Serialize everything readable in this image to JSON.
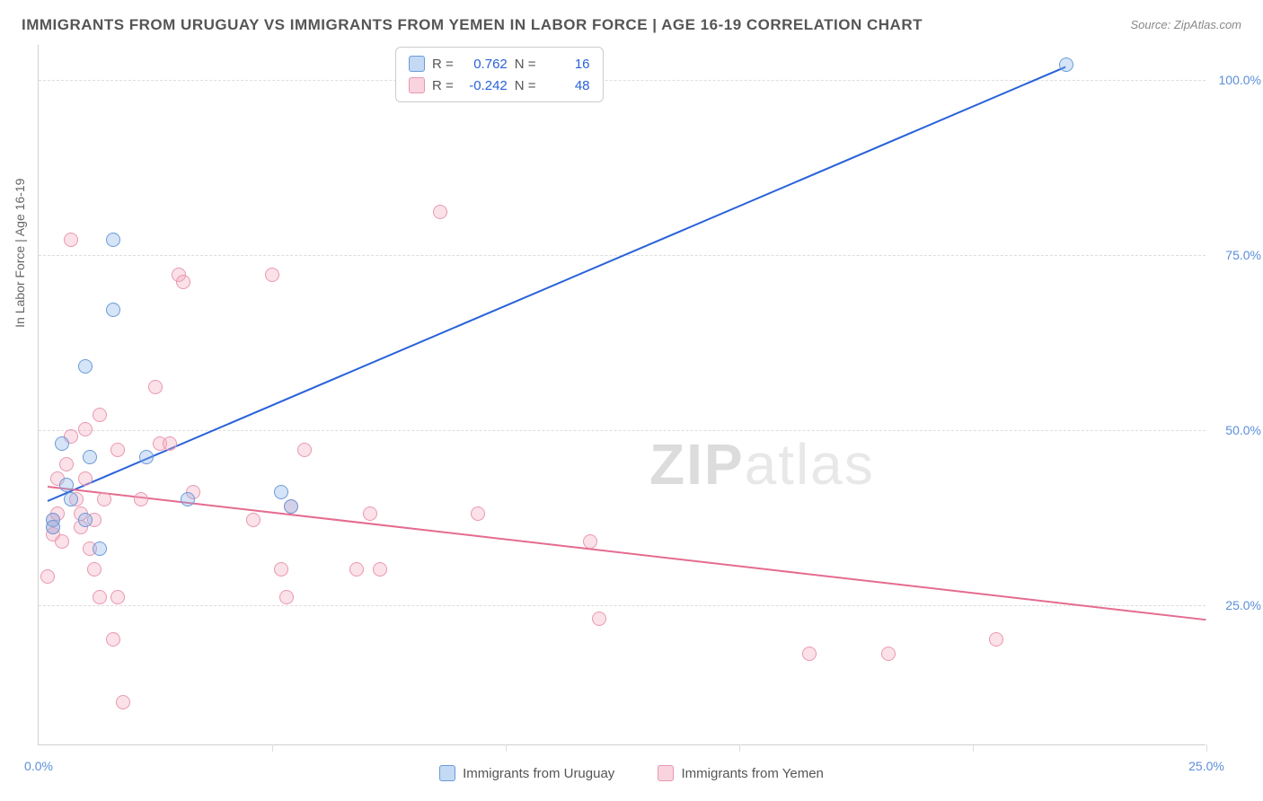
{
  "title": "IMMIGRANTS FROM URUGUAY VS IMMIGRANTS FROM YEMEN IN LABOR FORCE | AGE 16-19 CORRELATION CHART",
  "source": "Source: ZipAtlas.com",
  "watermark_a": "ZIP",
  "watermark_b": "atlas",
  "y_axis_label": "In Labor Force | Age 16-19",
  "chart": {
    "type": "scatter",
    "xlim": [
      0,
      25
    ],
    "ylim": [
      5,
      105
    ],
    "xticks": [
      0,
      25
    ],
    "yticks": [
      25,
      50,
      75,
      100
    ],
    "xtick_labels": [
      "0.0%",
      "25.0%"
    ],
    "ytick_labels": [
      "25.0%",
      "50.0%",
      "75.0%",
      "100.0%"
    ],
    "grid_color": "#dddddd",
    "background_color": "#ffffff",
    "series": [
      {
        "name": "Immigrants from Uruguay",
        "color": "#6a9bd8",
        "fill": "rgba(137,179,232,0.35)",
        "class": "point-blue",
        "marker_radius": 8,
        "points": [
          [
            0.3,
            37
          ],
          [
            0.3,
            36
          ],
          [
            0.6,
            42
          ],
          [
            0.7,
            40
          ],
          [
            0.5,
            48
          ],
          [
            1.0,
            37
          ],
          [
            1.3,
            33
          ],
          [
            1.0,
            59
          ],
          [
            1.1,
            46
          ],
          [
            1.6,
            67
          ],
          [
            1.6,
            77
          ],
          [
            2.3,
            46
          ],
          [
            3.2,
            40
          ],
          [
            5.2,
            41
          ],
          [
            5.4,
            39
          ],
          [
            22.0,
            102
          ]
        ],
        "regression": {
          "x1": 0.2,
          "y1": 40,
          "x2": 22.0,
          "y2": 102,
          "color": "#2962d9",
          "width": 2
        },
        "R": "0.762",
        "N": "16"
      },
      {
        "name": "Immigrants from Yemen",
        "color": "#e998b0",
        "fill": "rgba(244,168,190,0.35)",
        "class": "point-pink",
        "marker_radius": 8,
        "points": [
          [
            0.2,
            29
          ],
          [
            0.3,
            35
          ],
          [
            0.3,
            36
          ],
          [
            0.3,
            37
          ],
          [
            0.4,
            38
          ],
          [
            0.5,
            34
          ],
          [
            0.4,
            43
          ],
          [
            0.6,
            45
          ],
          [
            0.7,
            49
          ],
          [
            0.8,
            40
          ],
          [
            0.7,
            77
          ],
          [
            0.9,
            36
          ],
          [
            0.9,
            38
          ],
          [
            1.0,
            43
          ],
          [
            1.0,
            50
          ],
          [
            1.1,
            33
          ],
          [
            1.2,
            30
          ],
          [
            1.2,
            37
          ],
          [
            1.3,
            26
          ],
          [
            1.3,
            52
          ],
          [
            1.4,
            40
          ],
          [
            1.6,
            20
          ],
          [
            1.7,
            47
          ],
          [
            1.7,
            26
          ],
          [
            1.8,
            11
          ],
          [
            2.2,
            40
          ],
          [
            2.5,
            56
          ],
          [
            2.6,
            48
          ],
          [
            2.8,
            48
          ],
          [
            3.0,
            72
          ],
          [
            3.1,
            71
          ],
          [
            3.3,
            41
          ],
          [
            4.6,
            37
          ],
          [
            5.0,
            72
          ],
          [
            5.2,
            30
          ],
          [
            5.3,
            26
          ],
          [
            5.4,
            39
          ],
          [
            5.7,
            47
          ],
          [
            6.8,
            30
          ],
          [
            7.1,
            38
          ],
          [
            7.3,
            30
          ],
          [
            8.6,
            81
          ],
          [
            9.4,
            38
          ],
          [
            11.8,
            34
          ],
          [
            12.0,
            23
          ],
          [
            16.5,
            18
          ],
          [
            18.2,
            18
          ],
          [
            20.5,
            20
          ]
        ],
        "regression": {
          "x1": 0.2,
          "y1": 42,
          "x2": 25.0,
          "y2": 23,
          "color": "#e56b8f",
          "width": 2
        },
        "R": "-0.242",
        "N": "48"
      }
    ]
  },
  "legend_box": {
    "r_label": "R =",
    "n_label": "N ="
  },
  "bottom_legend": [
    {
      "label": "Immigrants from Uruguay",
      "swatch": "swatch-blue"
    },
    {
      "label": "Immigrants from Yemen",
      "swatch": "swatch-pink"
    }
  ]
}
